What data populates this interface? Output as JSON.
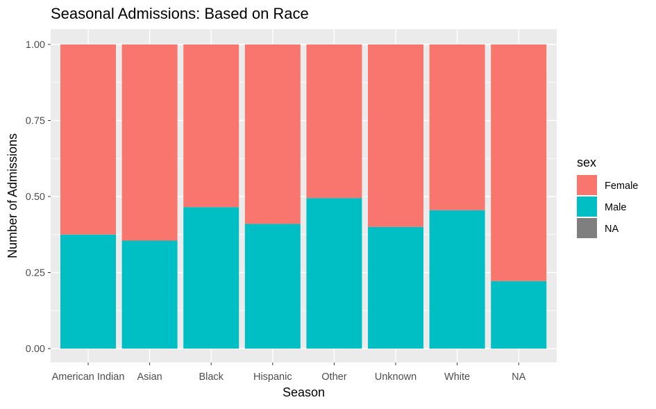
{
  "chart_data": {
    "type": "bar",
    "stacked": true,
    "title": "Seasonal Admissions: Based on Race",
    "xlabel": "Season",
    "ylabel": "Number of Admissions",
    "ylim": [
      0,
      1
    ],
    "yticks": [
      "0.00",
      "0.25",
      "0.50",
      "0.75",
      "1.00"
    ],
    "ytick_values": [
      0,
      0.25,
      0.5,
      0.75,
      1.0
    ],
    "grid": true,
    "categories": [
      "American Indian",
      "Asian",
      "Black",
      "Hispanic",
      "Other",
      "Unknown",
      "White",
      "NA"
    ],
    "series": [
      {
        "name": "Male",
        "color": "#00BFC4",
        "values": [
          0.375,
          0.355,
          0.465,
          0.41,
          0.495,
          0.4,
          0.455,
          0.222
        ]
      },
      {
        "name": "Female",
        "color": "#F8766D",
        "values": [
          0.625,
          0.645,
          0.535,
          0.59,
          0.505,
          0.6,
          0.545,
          0.778
        ]
      }
    ],
    "legend": {
      "title": "sex",
      "placement": "right",
      "entries": [
        {
          "label": "Female",
          "color": "#F8766D"
        },
        {
          "label": "Male",
          "color": "#00BFC4"
        },
        {
          "label": "NA",
          "color": "#7F7F7F"
        }
      ]
    },
    "panel_background": "#EBEBEB",
    "grid_color": "#FFFFFF"
  }
}
